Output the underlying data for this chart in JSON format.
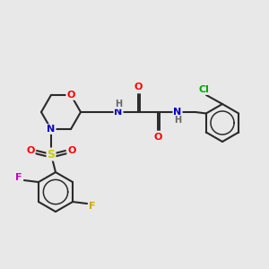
{
  "bg_color": "#e8e8e8",
  "bond_color": "#2a2a2a",
  "atom_colors": {
    "O": "#ff0000",
    "N": "#0000cc",
    "S": "#cccc00",
    "F1": "#cc00cc",
    "F2": "#ccaa00",
    "Cl": "#00aa00",
    "H": "#666666",
    "C": "#2a2a2a"
  },
  "figsize": [
    3.0,
    3.0
  ],
  "dpi": 100
}
